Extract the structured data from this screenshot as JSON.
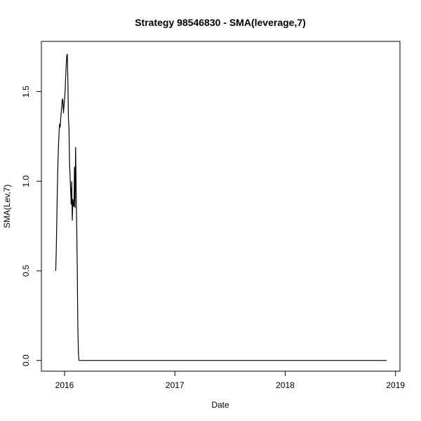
{
  "chart_data": {
    "type": "line",
    "title": "Strategy 98546830 - SMA(leverage,7)",
    "xlabel": "Date",
    "ylabel": "SMA(Lev,7)",
    "xlim": [
      2015.79,
      2019.04
    ],
    "ylim": [
      -0.06,
      1.78
    ],
    "x_ticks": [
      {
        "value": 2016,
        "label": "2016"
      },
      {
        "value": 2017,
        "label": "2017"
      },
      {
        "value": 2018,
        "label": "2018"
      },
      {
        "value": 2019,
        "label": "2019"
      }
    ],
    "y_ticks": [
      {
        "value": 0.0,
        "label": "0.0"
      },
      {
        "value": 0.5,
        "label": "0.5"
      },
      {
        "value": 1.0,
        "label": "1.0"
      },
      {
        "value": 1.5,
        "label": "1.5"
      }
    ],
    "grid": false,
    "series": [
      {
        "color": "#000000",
        "x": [
          2015.92,
          2015.925,
          2015.93,
          2015.935,
          2015.94,
          2015.945,
          2015.95,
          2015.955,
          2015.96,
          2015.965,
          2015.97,
          2015.975,
          2015.98,
          2015.985,
          2015.99,
          2015.995,
          2016.0,
          2016.005,
          2016.01,
          2016.015,
          2016.02,
          2016.025,
          2016.03,
          2016.035,
          2016.04,
          2016.045,
          2016.05,
          2016.055,
          2016.06,
          2016.065,
          2016.07,
          2016.075,
          2016.08,
          2016.085,
          2016.09,
          2016.095,
          2016.1,
          2016.105,
          2016.11,
          2016.115,
          2016.12,
          2016.125,
          2016.13,
          2016.135,
          2016.14,
          2016.145,
          2016.5,
          2017.0,
          2017.5,
          2018.0,
          2018.5,
          2018.92
        ],
        "values": [
          0.5,
          0.62,
          0.8,
          0.97,
          1.1,
          1.2,
          1.27,
          1.32,
          1.3,
          1.35,
          1.39,
          1.42,
          1.46,
          1.45,
          1.38,
          1.42,
          1.46,
          1.5,
          1.58,
          1.65,
          1.7,
          1.71,
          1.56,
          1.35,
          1.3,
          1.1,
          1.03,
          0.95,
          0.87,
          1.0,
          0.78,
          0.9,
          0.86,
          0.86,
          1.08,
          0.85,
          1.19,
          0.95,
          0.75,
          0.52,
          0.2,
          0.05,
          0.0,
          0.0,
          0.0,
          0.0,
          0.0,
          0.0,
          0.0,
          0.0,
          0.0,
          0.0
        ]
      }
    ]
  }
}
